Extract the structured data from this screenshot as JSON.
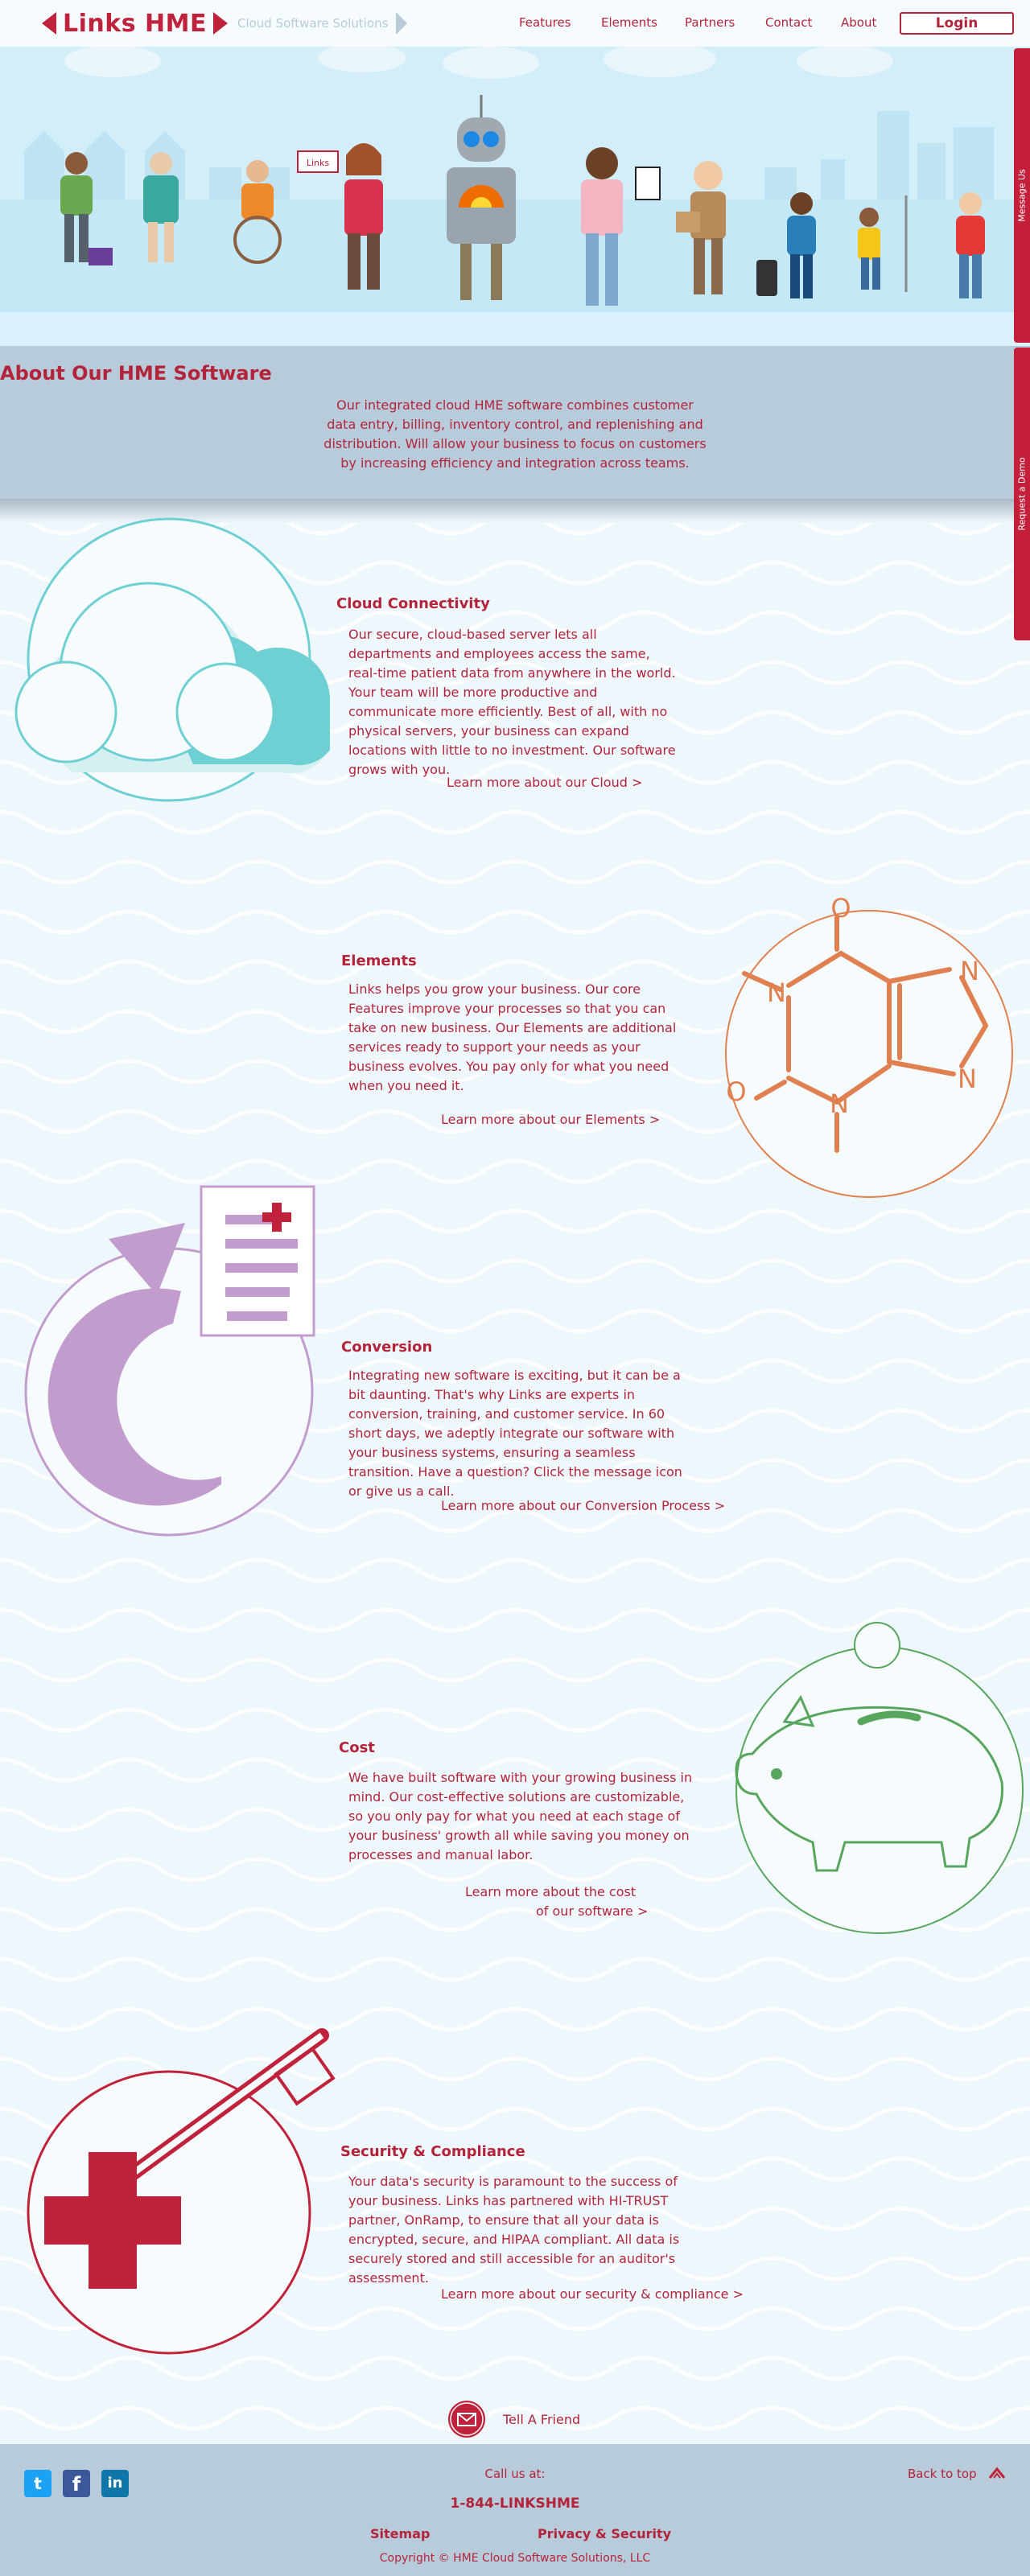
{
  "header": {
    "logo_text": "Links HME",
    "tagline": "Cloud Software Solutions",
    "nav": [
      "Features",
      "Elements",
      "Partners",
      "Contact",
      "About"
    ],
    "login_label": "Login"
  },
  "side_tabs": {
    "message": "Message Us",
    "demo": "Request a Demo"
  },
  "hero": {
    "sign_text": "Links"
  },
  "about": {
    "title": "About Our HME Software",
    "text": "Our integrated cloud HME software combines customer data entry, billing, inventory control, and replenishing and distribution. Will allow your business to focus on customers by increasing efficiency and integration across teams."
  },
  "sections": [
    {
      "title": "Cloud Connectivity",
      "text": "Our secure, cloud-based server lets all departments and employees access the same, real-time patient data from anywhere in the world. Your team will be more productive and communicate more efficiently. Best of all, with no physical servers, your business can expand locations with little to no investment. Our software grows with you.",
      "link": "Learn more about our Cloud >"
    },
    {
      "title": "Elements",
      "text": "Links helps you grow your business. Our core Features improve your processes so that you can take on new business. Our Elements are additional services ready to support your needs as your business evolves. You pay only for what you need when you need it.",
      "link": "Learn more about our Elements  >"
    },
    {
      "title": "Conversion",
      "text": "Integrating new software is exciting, but it can be a bit daunting. That's why Links are experts in conversion, training, and customer service. In 60 short days, we adeptly integrate our software with your business systems, ensuring a seamless transition. Have a question? Click the message icon or give us a call.",
      "link": "Learn more about our Conversion Process  >"
    },
    {
      "title": "Cost",
      "text": "We have built software with your growing business in mind. Our cost-effective solutions are customizable, so you only pay for what you need at each stage of your business' growth all while saving you money on processes and manual labor.",
      "link": "Learn more about the cost",
      "link2": "of our software  >"
    },
    {
      "title": "Security & Compliance",
      "text": "Your data's security is paramount to the success of your business. Links has partnered with HI-TRUST partner, OnRamp, to ensure that all your data is encrypted, secure, and HIPAA compliant. All data is securely stored and still accessible for an auditor's assessment.",
      "link": "Learn more about our security & compliance  >"
    }
  ],
  "elements_icon": {
    "atoms": [
      "O",
      "N",
      "N",
      "O",
      "N",
      "N"
    ]
  },
  "tell_friend": "Tell A Friend",
  "footer": {
    "call_label": "Call us at:",
    "phone": "1-844-LINKSHME",
    "back_to_top": "Back to top",
    "sitemap": "Sitemap",
    "privacy": "Privacy & Security",
    "copyright": "Copyright © HME Cloud Software Solutions, LLC"
  },
  "colors": {
    "brand_red": "#c0223b",
    "cloud_teal": "#6fd0d3",
    "elements_orange": "#e08050",
    "conversion_purple": "#c29ccd",
    "cost_green": "#58a55d",
    "footer_bg": "#b8cbda"
  }
}
